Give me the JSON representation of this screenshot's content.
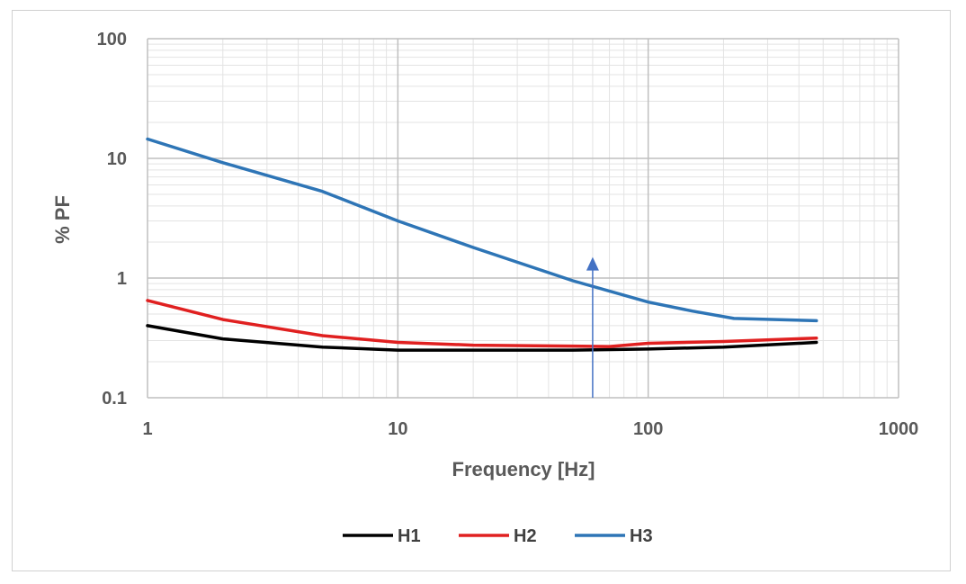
{
  "chart_data": {
    "type": "line",
    "xscale": "log",
    "yscale": "log",
    "xlim": [
      1,
      1000
    ],
    "ylim": [
      0.1,
      100
    ],
    "xlabel": "Frequency [Hz]",
    "ylabel": "% PF",
    "x_ticks": [
      "1",
      "10",
      "100",
      "1000"
    ],
    "y_ticks": [
      "0.1",
      "1",
      "10",
      "100"
    ],
    "grid": true,
    "legend_position": "bottom",
    "series": [
      {
        "name": "H1",
        "color": "#000000",
        "points": [
          [
            1,
            0.4
          ],
          [
            2,
            0.31
          ],
          [
            5,
            0.265
          ],
          [
            10,
            0.25
          ],
          [
            20,
            0.25
          ],
          [
            50,
            0.25
          ],
          [
            100,
            0.255
          ],
          [
            200,
            0.265
          ],
          [
            470,
            0.29
          ]
        ]
      },
      {
        "name": "H2",
        "color": "#e02020",
        "points": [
          [
            1,
            0.65
          ],
          [
            2,
            0.45
          ],
          [
            5,
            0.33
          ],
          [
            10,
            0.29
          ],
          [
            20,
            0.275
          ],
          [
            50,
            0.27
          ],
          [
            70,
            0.268
          ],
          [
            100,
            0.285
          ],
          [
            200,
            0.295
          ],
          [
            470,
            0.315
          ]
        ]
      },
      {
        "name": "H3",
        "color": "#2e75b6",
        "points": [
          [
            1,
            14.5
          ],
          [
            2,
            9.2
          ],
          [
            5,
            5.3
          ],
          [
            10,
            3.0
          ],
          [
            20,
            1.8
          ],
          [
            50,
            0.95
          ],
          [
            100,
            0.63
          ],
          [
            150,
            0.53
          ],
          [
            220,
            0.46
          ],
          [
            470,
            0.44
          ]
        ]
      }
    ],
    "annotation": {
      "type": "arrow",
      "direction": "up",
      "color": "#4472c4",
      "x": 60,
      "y_from": 0.1,
      "y_to": 1.5
    }
  }
}
